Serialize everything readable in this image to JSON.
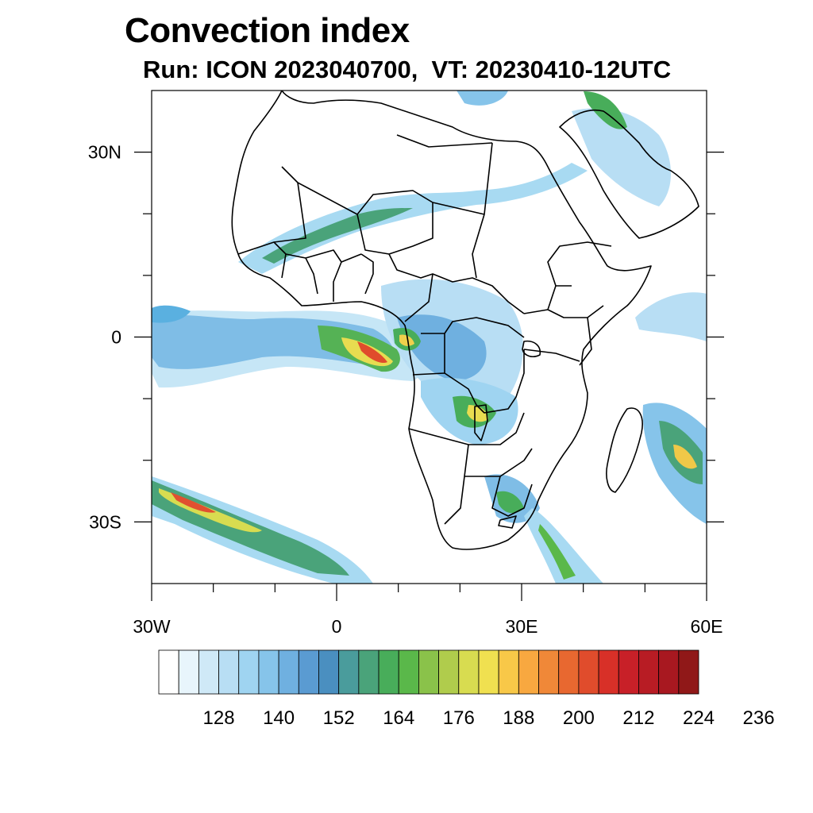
{
  "title": "Convection index",
  "subtitle": "Run: ICON 2023040700,  VT: 20230410-12UTC",
  "map": {
    "lon_range": [
      -30,
      60
    ],
    "lat_range": [
      -40,
      40
    ],
    "x_ticks": [
      {
        "value": -30,
        "label": "30W"
      },
      {
        "value": 0,
        "label": "0"
      },
      {
        "value": 30,
        "label": "30E"
      },
      {
        "value": 60,
        "label": "60E"
      }
    ],
    "y_ticks": [
      {
        "value": 30,
        "label": "30N"
      },
      {
        "value": 0,
        "label": "0"
      },
      {
        "value": -30,
        "label": "30S"
      }
    ]
  },
  "colorbar": {
    "colors": [
      "#ffffff",
      "#e8f5fc",
      "#cfe9f7",
      "#b8def4",
      "#9fd4f1",
      "#86c4ea",
      "#6fb0e0",
      "#5a9bd2",
      "#4a8fc0",
      "#4a9c9c",
      "#4aa37a",
      "#48ad5a",
      "#5ab84a",
      "#8ac24a",
      "#b0cc4c",
      "#d8dc50",
      "#f0e050",
      "#f8c848",
      "#f8a840",
      "#f08838",
      "#e86830",
      "#e04c2c",
      "#d83028",
      "#c82028",
      "#b81c24",
      "#a81820",
      "#901818"
    ],
    "labels": [
      "128",
      "140",
      "152",
      "164",
      "176",
      "188",
      "200",
      "212",
      "224",
      "236"
    ]
  }
}
